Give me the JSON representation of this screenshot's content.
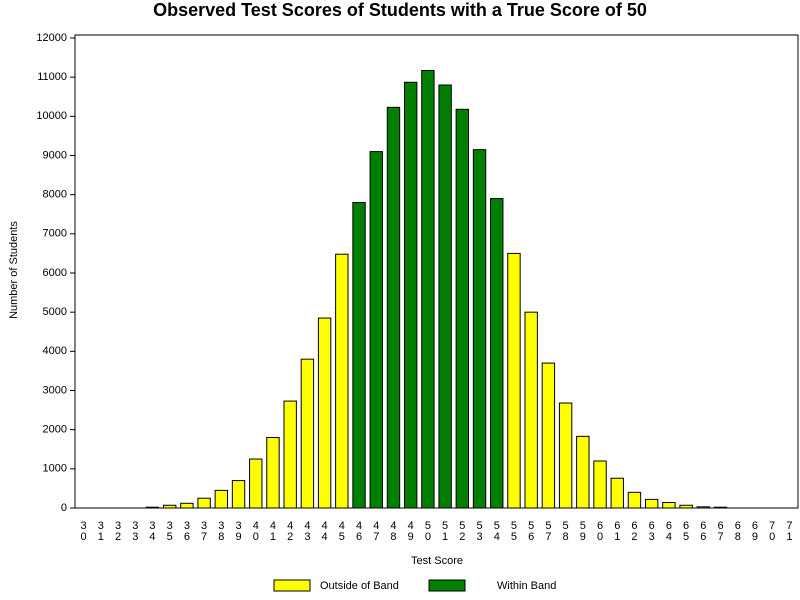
{
  "chart_data": {
    "type": "bar",
    "title": "Observed Test Scores of Students with a True Score of 50",
    "x_label": "Test Score",
    "y_label": "Number of Students",
    "categories": [
      "30",
      "31",
      "32",
      "33",
      "34",
      "35",
      "36",
      "37",
      "38",
      "39",
      "40",
      "41",
      "42",
      "43",
      "44",
      "45",
      "46",
      "47",
      "48",
      "49",
      "50",
      "51",
      "52",
      "53",
      "54",
      "55",
      "56",
      "57",
      "58",
      "59",
      "60",
      "61",
      "62",
      "63",
      "64",
      "65",
      "66",
      "67",
      "68",
      "69",
      "70",
      "71"
    ],
    "series": [
      {
        "name": "Outside of Band",
        "color": "#ffff00",
        "values": [
          0,
          0,
          0,
          0,
          20,
          70,
          120,
          250,
          450,
          700,
          1250,
          1800,
          2730,
          3800,
          4850,
          6480,
          null,
          null,
          null,
          null,
          null,
          null,
          null,
          null,
          null,
          6500,
          5000,
          3700,
          2680,
          1830,
          1200,
          760,
          400,
          220,
          140,
          70,
          30,
          20,
          0,
          0,
          0,
          0
        ]
      },
      {
        "name": "Within Band",
        "color": "#007f00",
        "values": [
          null,
          null,
          null,
          null,
          null,
          null,
          null,
          null,
          null,
          null,
          null,
          null,
          null,
          null,
          null,
          null,
          7800,
          9100,
          10230,
          10870,
          11170,
          10800,
          10180,
          9150,
          7900,
          null,
          null,
          null,
          null,
          null,
          null,
          null,
          null,
          null,
          null,
          null,
          null,
          null,
          null,
          null,
          null,
          null
        ]
      }
    ],
    "ylim": [
      0,
      12000
    ],
    "yticks": [
      0,
      1000,
      2000,
      3000,
      4000,
      5000,
      6000,
      7000,
      8000,
      9000,
      10000,
      11000,
      12000
    ]
  }
}
